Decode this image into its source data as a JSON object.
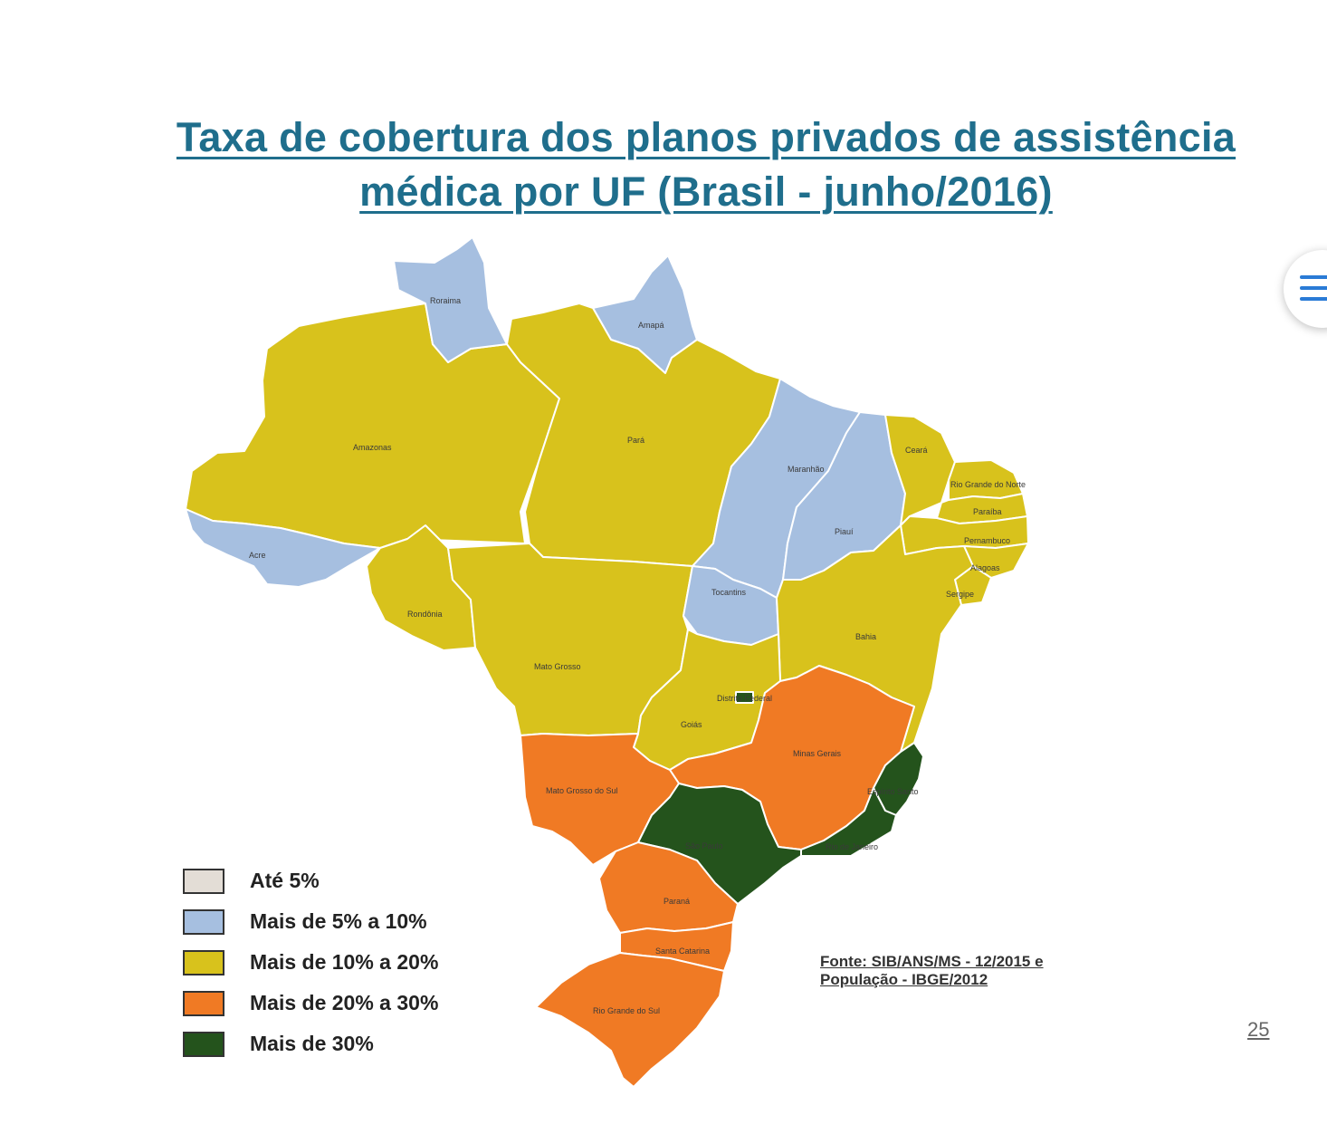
{
  "title": {
    "line1": "Taxa de cobertura dos planos privados de assistência",
    "line2": "médica por UF (Brasil - junho/2016)"
  },
  "colors": {
    "ate5": "#e3ddd6",
    "c5a10": "#a6bfe0",
    "c10a20": "#d8c21c",
    "c20a30": "#f07a24",
    "mais30": "#24531c"
  },
  "legend": [
    {
      "label": "Até 5%",
      "color": "#e3ddd6"
    },
    {
      "label": "Mais de 5% a 10%",
      "color": "#a6bfe0"
    },
    {
      "label": "Mais de 10% a 20%",
      "color": "#d8c21c"
    },
    {
      "label": "Mais de 20% a 30%",
      "color": "#f07a24"
    },
    {
      "label": "Mais de 30%",
      "color": "#24531c"
    }
  ],
  "states": {
    "roraima": "Roraima",
    "amapa": "Amapá",
    "amazonas": "Amazonas",
    "para": "Pará",
    "acre": "Acre",
    "rondonia": "Rondônia",
    "mato_grosso": "Mato Grosso",
    "maranhao": "Maranhão",
    "piaui": "Piauí",
    "ceara": "Ceará",
    "rio_grande_do_norte": "Rio Grande do Norte",
    "paraiba": "Paraíba",
    "pernambuco": "Pernambuco",
    "alagoas": "Alagoas",
    "sergipe": "Sergipe",
    "tocantins": "Tocantins",
    "bahia": "Bahia",
    "distrito_federal": "Distrito Federal",
    "goias": "Goiás",
    "minas_gerais": "Minas Gerais",
    "mato_grosso_do_sul": "Mato Grosso do Sul",
    "espirito_santo": "Espírito Santo",
    "sao_paulo": "São Paulo",
    "rio_de_janeiro": "Rio de Janeiro",
    "parana": "Paraná",
    "santa_catarina": "Santa Catarina",
    "rio_grande_do_sul": "Rio Grande do Sul"
  },
  "source": {
    "line1": "Fonte: SIB/ANS/MS - 12/2015 e",
    "line2": "População - IBGE/2012"
  },
  "page_number": "25",
  "menu_icon": "hamburger-menu-icon"
}
